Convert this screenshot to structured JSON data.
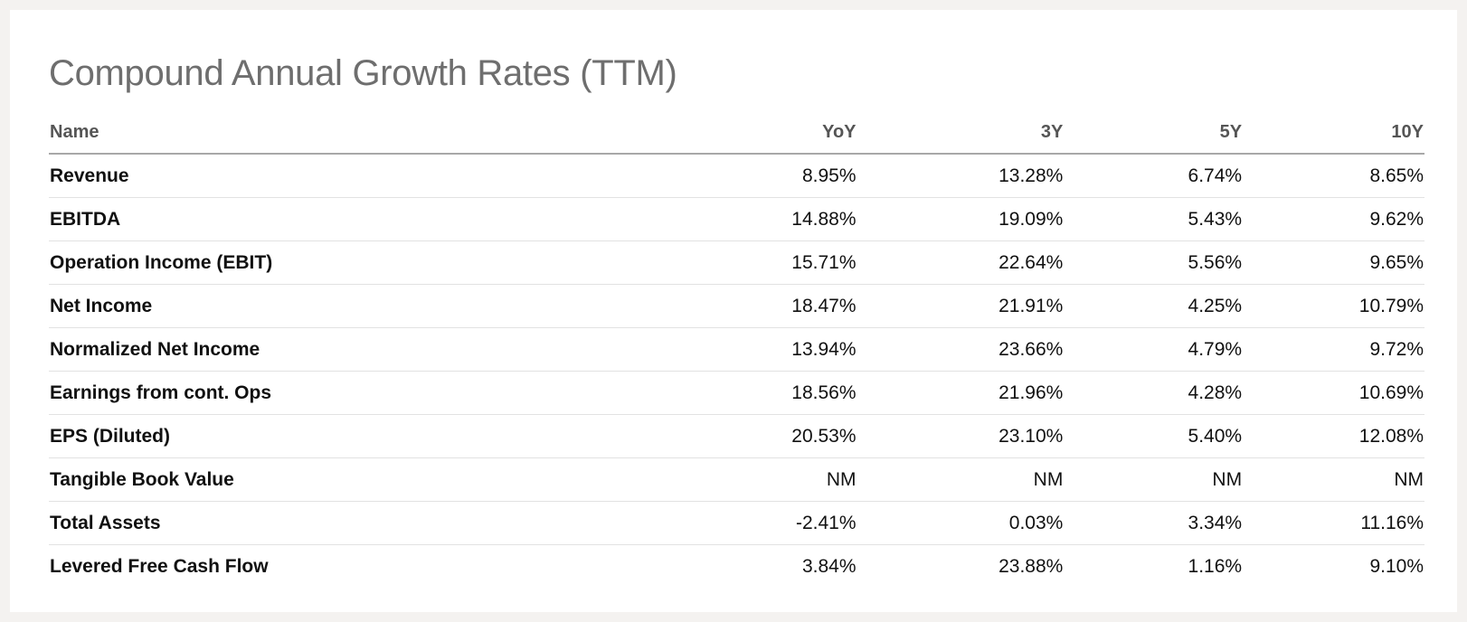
{
  "title": "Compound Annual Growth Rates (TTM)",
  "table": {
    "headers": {
      "name": "Name",
      "yoy": "YoY",
      "y3": "3Y",
      "y5": "5Y",
      "y10": "10Y"
    },
    "rows": [
      {
        "name": "Revenue",
        "yoy": "8.95%",
        "y3": "13.28%",
        "y5": "6.74%",
        "y10": "8.65%"
      },
      {
        "name": "EBITDA",
        "yoy": "14.88%",
        "y3": "19.09%",
        "y5": "5.43%",
        "y10": "9.62%"
      },
      {
        "name": "Operation Income (EBIT)",
        "yoy": "15.71%",
        "y3": "22.64%",
        "y5": "5.56%",
        "y10": "9.65%"
      },
      {
        "name": "Net Income",
        "yoy": "18.47%",
        "y3": "21.91%",
        "y5": "4.25%",
        "y10": "10.79%"
      },
      {
        "name": "Normalized Net Income",
        "yoy": "13.94%",
        "y3": "23.66%",
        "y5": "4.79%",
        "y10": "9.72%"
      },
      {
        "name": "Earnings from cont. Ops",
        "yoy": "18.56%",
        "y3": "21.96%",
        "y5": "4.28%",
        "y10": "10.69%"
      },
      {
        "name": "EPS (Diluted)",
        "yoy": "20.53%",
        "y3": "23.10%",
        "y5": "5.40%",
        "y10": "12.08%"
      },
      {
        "name": "Tangible Book Value",
        "yoy": "NM",
        "y3": "NM",
        "y5": "NM",
        "y10": "NM"
      },
      {
        "name": "Total Assets",
        "yoy": "-2.41%",
        "y3": "0.03%",
        "y5": "3.34%",
        "y10": "11.16%"
      },
      {
        "name": "Levered Free Cash Flow",
        "yoy": "3.84%",
        "y3": "23.88%",
        "y5": "1.16%",
        "y10": "9.10%"
      }
    ]
  }
}
